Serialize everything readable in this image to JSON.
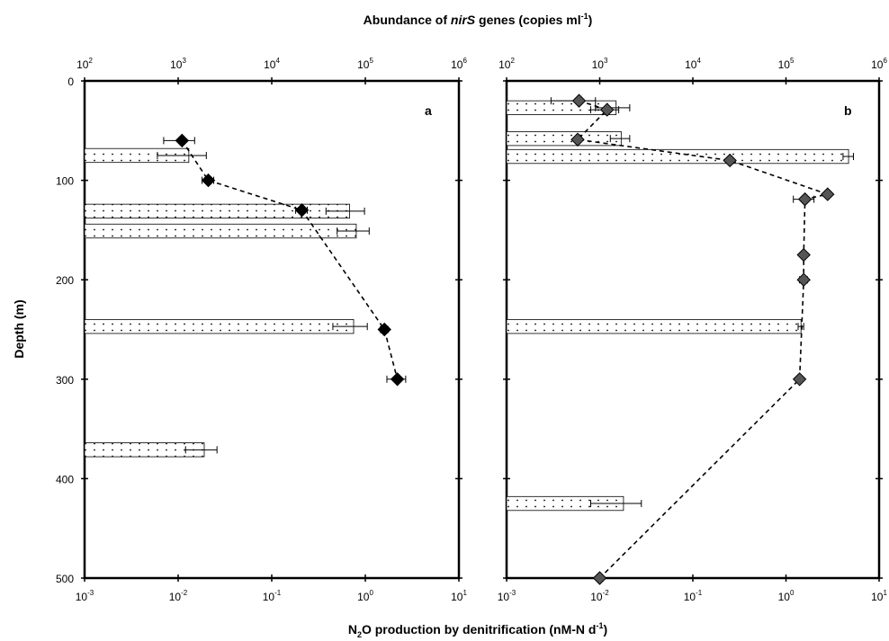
{
  "chart_data": [
    {
      "type": "scatter",
      "panel": "a",
      "top_axis": {
        "label": "copies ml⁻¹",
        "scale": "log",
        "range": [
          100,
          1000000
        ],
        "ticks": [
          {
            "base": "10",
            "exp": "2"
          },
          {
            "base": "10",
            "exp": "3"
          },
          {
            "base": "10",
            "exp": "4"
          },
          {
            "base": "10",
            "exp": "5"
          },
          {
            "base": "10",
            "exp": "6"
          }
        ]
      },
      "bottom_axis": {
        "label": "nM-N d⁻¹",
        "scale": "log",
        "range": [
          0.001,
          10
        ],
        "ticks": [
          {
            "base": "10",
            "exp": "-3"
          },
          {
            "base": "10",
            "exp": "-2"
          },
          {
            "base": "10",
            "exp": "-1"
          },
          {
            "base": "10",
            "exp": "0"
          },
          {
            "base": "10",
            "exp": "1"
          }
        ]
      },
      "y_axis": {
        "label": "Depth (m)",
        "range": [
          0,
          500
        ],
        "ticks": [
          "0",
          "100",
          "200",
          "300",
          "400",
          "500"
        ]
      },
      "bars_nirS": [
        {
          "depth_top": 68,
          "depth_bottom": 82,
          "value": 1300,
          "err": 700
        },
        {
          "depth_top": 124,
          "depth_bottom": 138,
          "value": 68000,
          "err": 30000
        },
        {
          "depth_top": 144,
          "depth_bottom": 158,
          "value": 80000,
          "err": 30000
        },
        {
          "depth_top": 240,
          "depth_bottom": 254,
          "value": 75000,
          "err": 30000
        },
        {
          "depth_top": 364,
          "depth_bottom": 378,
          "value": 1900,
          "err": 700
        }
      ],
      "points_N2O": [
        {
          "depth": 60,
          "value": 0.011,
          "err": 0.004
        },
        {
          "depth": 100,
          "value": 0.021,
          "err": 0.003
        },
        {
          "depth": 130,
          "value": 0.21,
          "err": 0.03
        },
        {
          "depth": 250,
          "value": 1.6,
          "err": 0.15
        },
        {
          "depth": 300,
          "value": 2.2,
          "err": 0.5
        }
      ],
      "marker_color": "#000000"
    },
    {
      "type": "scatter",
      "panel": "b",
      "top_axis": {
        "scale": "log",
        "range": [
          100,
          1000000
        ],
        "ticks": [
          {
            "base": "10",
            "exp": "2"
          },
          {
            "base": "10",
            "exp": "3"
          },
          {
            "base": "10",
            "exp": "4"
          },
          {
            "base": "10",
            "exp": "5"
          },
          {
            "base": "10",
            "exp": "6"
          }
        ]
      },
      "bottom_axis": {
        "scale": "log",
        "range": [
          0.001,
          10
        ],
        "ticks": [
          {
            "base": "10",
            "exp": "-3"
          },
          {
            "base": "10",
            "exp": "-2"
          },
          {
            "base": "10",
            "exp": "-1"
          },
          {
            "base": "10",
            "exp": "0"
          },
          {
            "base": "10",
            "exp": "1"
          }
        ]
      },
      "y_axis": {
        "range": [
          0,
          500
        ]
      },
      "bars_nirS": [
        {
          "depth_top": 20,
          "depth_bottom": 34,
          "value": 1500,
          "err": 600
        },
        {
          "depth_top": 51,
          "depth_bottom": 65,
          "value": 1700,
          "err": 400
        },
        {
          "depth_top": 69,
          "depth_bottom": 83,
          "value": 470000,
          "err": 60000
        },
        {
          "depth_top": 240,
          "depth_bottom": 254,
          "value": 145000,
          "err": 10000
        },
        {
          "depth_top": 418,
          "depth_bottom": 432,
          "value": 1800,
          "err": 1000
        }
      ],
      "points_N2O": [
        {
          "depth": 20,
          "value": 0.006,
          "err": 0.003
        },
        {
          "depth": 29,
          "value": 0.012,
          "err": 0.004
        },
        {
          "depth": 59,
          "value": 0.0058,
          "err": 0.0
        },
        {
          "depth": 80,
          "value": 0.25,
          "err": 0.0
        },
        {
          "depth": 114,
          "value": 2.8,
          "err": 0.0
        },
        {
          "depth": 119,
          "value": 1.6,
          "err": 0.4
        },
        {
          "depth": 175,
          "value": 1.55,
          "err": 0.0
        },
        {
          "depth": 200,
          "value": 1.55,
          "err": 0.15
        },
        {
          "depth": 300,
          "value": 1.4,
          "err": 0.0
        },
        {
          "depth": 500,
          "value": 0.01,
          "err": 0.0
        }
      ],
      "marker_color": "#555555"
    }
  ],
  "labels": {
    "top_title_prefix": "Abundance of ",
    "top_title_italic": "nirS",
    "top_title_mid": " genes (copies ml",
    "top_title_sup": "-1",
    "top_title_suffix": ")",
    "bottom_title_n": "N",
    "bottom_title_sub": "2",
    "bottom_title_mid": "O production by denitrification (nM-N d",
    "bottom_title_sup": "-1",
    "bottom_title_suffix": ")",
    "y_title": "Depth (m)",
    "panel_a": "a",
    "panel_b": "b"
  }
}
